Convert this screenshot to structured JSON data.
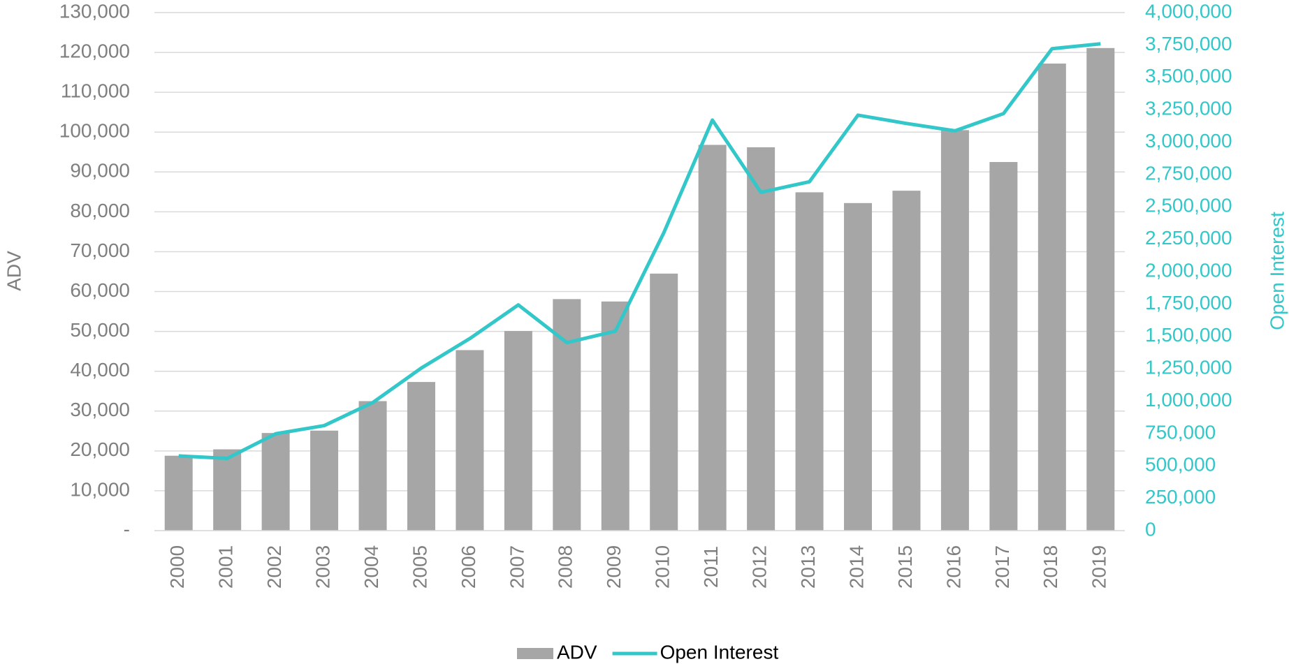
{
  "chart_data": {
    "type": "bar_line",
    "categories": [
      "2000",
      "2001",
      "2002",
      "2003",
      "2004",
      "2005",
      "2006",
      "2007",
      "2008",
      "2009",
      "2010",
      "2011",
      "2012",
      "2013",
      "2014",
      "2015",
      "2016",
      "2017",
      "2018",
      "2019"
    ],
    "series": [
      {
        "name": "ADV",
        "type": "bar",
        "color": "#a6a6a6",
        "axis": "y",
        "values": [
          18800,
          20400,
          24500,
          25100,
          32500,
          37300,
          45300,
          50100,
          58100,
          57500,
          64500,
          96800,
          96200,
          84900,
          82200,
          85300,
          100500,
          92500,
          117200,
          121100
        ]
      },
      {
        "name": "Open Interest",
        "type": "line",
        "color": "#33c7c9",
        "axis": "y2",
        "values": [
          577000,
          558000,
          748000,
          811000,
          989000,
          1255000,
          1483000,
          1743000,
          1452000,
          1540000,
          2301000,
          3170000,
          2612000,
          2694000,
          3208000,
          3144000,
          3087000,
          3220000,
          3721000,
          3759000
        ]
      }
    ],
    "ylabel": "ADV",
    "y2label": "Open Interest",
    "ylim": [
      0,
      130000
    ],
    "yticks": [
      {
        "value": 0,
        "label": "-"
      },
      {
        "value": 10000,
        "label": "10,000"
      },
      {
        "value": 20000,
        "label": "20,000"
      },
      {
        "value": 30000,
        "label": "30,000"
      },
      {
        "value": 40000,
        "label": "40,000"
      },
      {
        "value": 50000,
        "label": "50,000"
      },
      {
        "value": 60000,
        "label": "60,000"
      },
      {
        "value": 70000,
        "label": "70,000"
      },
      {
        "value": 80000,
        "label": "80,000"
      },
      {
        "value": 90000,
        "label": "90,000"
      },
      {
        "value": 100000,
        "label": "100,000"
      },
      {
        "value": 110000,
        "label": "110,000"
      },
      {
        "value": 120000,
        "label": "120,000"
      },
      {
        "value": 130000,
        "label": "130,000"
      }
    ],
    "y2lim": [
      0,
      4000000
    ],
    "y2ticks": [
      0,
      {
        "value": 250000,
        "label": "250,000"
      },
      {
        "value": 500000,
        "label": "500,000"
      },
      {
        "value": 750000,
        "label": "750,000"
      },
      {
        "value": 1000000,
        "label": "1,000,000"
      },
      {
        "value": 1250000,
        "label": "1,250,000"
      },
      {
        "value": 1500000,
        "label": "1,500,000"
      },
      {
        "value": 1750000,
        "label": "1,750,000"
      },
      {
        "value": 2000000,
        "label": "2,000,000"
      },
      {
        "value": 2250000,
        "label": "2,250,000"
      },
      {
        "value": 2500000,
        "label": "2,500,000"
      },
      {
        "value": 2750000,
        "label": "2,750,000"
      },
      {
        "value": 3000000,
        "label": "3,000,000"
      },
      {
        "value": 3250000,
        "label": "3,250,000"
      },
      {
        "value": 3500000,
        "label": "3,500,000"
      },
      {
        "value": 3750000,
        "label": "3,750,000"
      },
      {
        "value": 4000000,
        "label": "4,000,000"
      }
    ],
    "grid": true,
    "legend": "bottom"
  }
}
